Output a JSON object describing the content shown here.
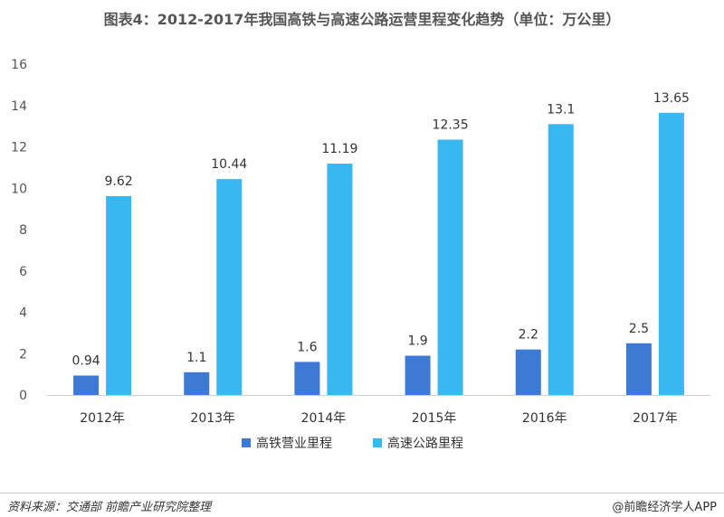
{
  "chart_data": {
    "type": "bar",
    "title": "图表4：2012-2017年我国高铁与高速公路运营里程变化趋势（单位：万公里）",
    "categories": [
      "2012年",
      "2013年",
      "2014年",
      "2015年",
      "2016年",
      "2017年"
    ],
    "series": [
      {
        "name": "高铁营业里程",
        "color": "#3d7ad6",
        "values": [
          0.94,
          1.1,
          1.6,
          1.9,
          2.2,
          2.5
        ]
      },
      {
        "name": "高速公路里程",
        "color": "#38b7f1",
        "values": [
          9.62,
          10.44,
          11.19,
          12.35,
          13.1,
          13.65
        ]
      }
    ],
    "value_labels": [
      [
        "0.94",
        "1.1",
        "1.6",
        "1.9",
        "2.2",
        "2.5"
      ],
      [
        "9.62",
        "10.44",
        "11.19",
        "12.35",
        "13.1",
        "13.65"
      ]
    ],
    "ylim": [
      0,
      16
    ],
    "yticks": [
      0,
      2,
      4,
      6,
      8,
      10,
      12,
      14,
      16
    ],
    "grid": false,
    "legend": "bottom"
  },
  "footer": {
    "source": "资料来源：交通部  前瞻产业研究院整理",
    "credit": "@前瞻经济学人APP"
  }
}
